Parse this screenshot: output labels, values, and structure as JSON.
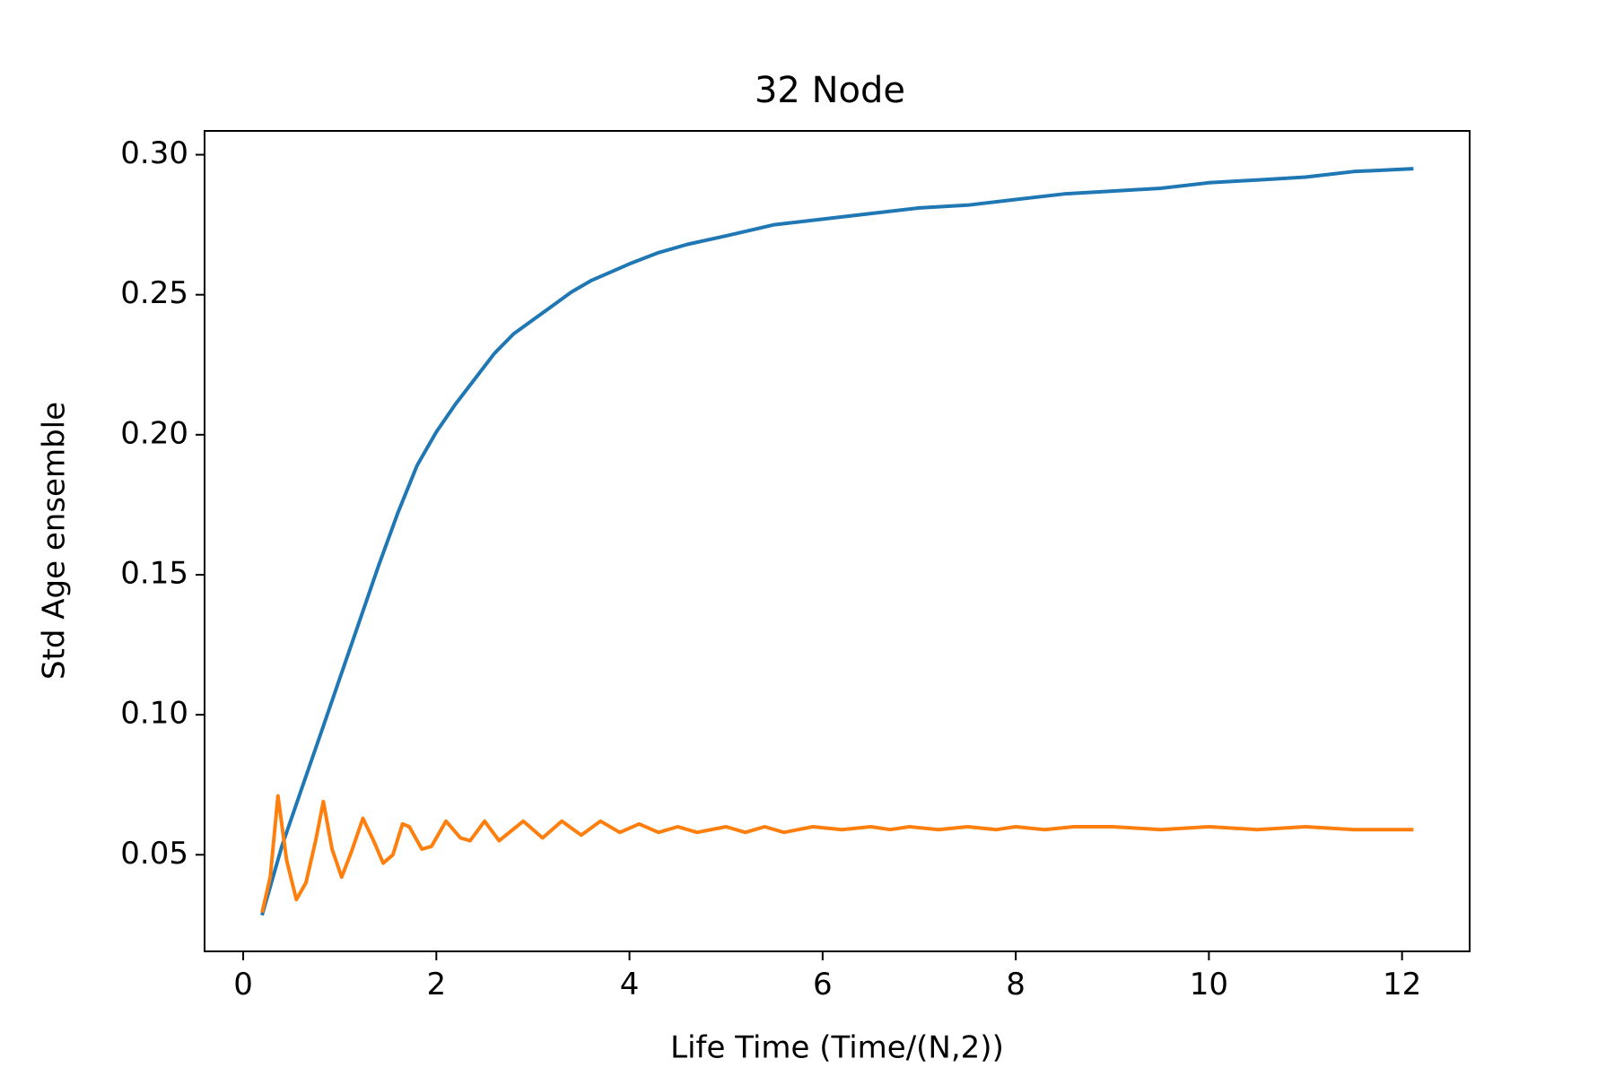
{
  "chart_data": {
    "type": "line",
    "title": "32 Node",
    "xlabel": "Life Time (Time/(N,2))",
    "ylabel": "Std Age ensemble",
    "xlim": [
      -0.4,
      12.7
    ],
    "ylim": [
      0.0155,
      0.3085
    ],
    "xticks": [
      0,
      2,
      4,
      6,
      8,
      10,
      12
    ],
    "xtick_labels": [
      "0",
      "2",
      "4",
      "6",
      "8",
      "10",
      "12"
    ],
    "yticks": [
      0.05,
      0.1,
      0.15,
      0.2,
      0.25,
      0.3
    ],
    "ytick_labels": [
      "0.05",
      "0.10",
      "0.15",
      "0.20",
      "0.25",
      "0.30"
    ],
    "grid": false,
    "legend": "none",
    "series": [
      {
        "color": "#1f77b4",
        "x": [
          0.2,
          0.4,
          0.6,
          0.8,
          1.0,
          1.2,
          1.4,
          1.6,
          1.8,
          2.0,
          2.2,
          2.4,
          2.6,
          2.8,
          3.0,
          3.2,
          3.4,
          3.6,
          3.8,
          4.0,
          4.3,
          4.6,
          5.0,
          5.5,
          6.0,
          6.5,
          7.0,
          7.5,
          8.0,
          8.5,
          9.0,
          9.5,
          10.0,
          10.5,
          11.0,
          11.5,
          12.1
        ],
        "y": [
          0.029,
          0.053,
          0.073,
          0.093,
          0.113,
          0.133,
          0.153,
          0.172,
          0.189,
          0.201,
          0.211,
          0.22,
          0.229,
          0.236,
          0.241,
          0.246,
          0.251,
          0.255,
          0.258,
          0.261,
          0.265,
          0.268,
          0.271,
          0.275,
          0.277,
          0.279,
          0.281,
          0.282,
          0.284,
          0.286,
          0.287,
          0.288,
          0.29,
          0.291,
          0.292,
          0.294,
          0.295
        ]
      },
      {
        "color": "#ff7f0e",
        "x": [
          0.2,
          0.28,
          0.36,
          0.45,
          0.55,
          0.65,
          0.75,
          0.83,
          0.92,
          1.02,
          1.12,
          1.24,
          1.35,
          1.45,
          1.55,
          1.65,
          1.72,
          1.85,
          1.95,
          2.1,
          2.25,
          2.35,
          2.5,
          2.65,
          2.9,
          3.1,
          3.3,
          3.5,
          3.7,
          3.9,
          4.1,
          4.3,
          4.5,
          4.7,
          5.0,
          5.2,
          5.4,
          5.6,
          5.9,
          6.2,
          6.5,
          6.7,
          6.9,
          7.2,
          7.5,
          7.8,
          8.0,
          8.3,
          8.6,
          9.0,
          9.5,
          10.0,
          10.5,
          11.0,
          11.5,
          12.1
        ],
        "y": [
          0.03,
          0.042,
          0.071,
          0.048,
          0.034,
          0.04,
          0.055,
          0.069,
          0.052,
          0.042,
          0.051,
          0.063,
          0.055,
          0.047,
          0.05,
          0.061,
          0.06,
          0.052,
          0.053,
          0.062,
          0.056,
          0.055,
          0.062,
          0.055,
          0.062,
          0.056,
          0.062,
          0.057,
          0.062,
          0.058,
          0.061,
          0.058,
          0.06,
          0.058,
          0.06,
          0.058,
          0.06,
          0.058,
          0.06,
          0.059,
          0.06,
          0.059,
          0.06,
          0.059,
          0.06,
          0.059,
          0.06,
          0.059,
          0.06,
          0.06,
          0.059,
          0.06,
          0.059,
          0.06,
          0.059,
          0.059
        ]
      }
    ]
  }
}
